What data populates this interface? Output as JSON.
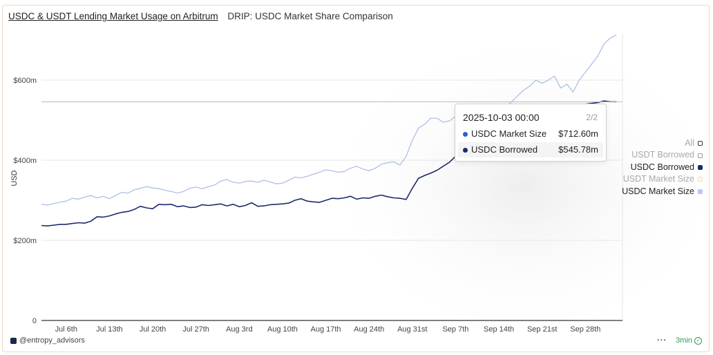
{
  "header": {
    "dashboard_title": "USDC & USDT Lending Market Usage on Arbitrum",
    "chart_title": "DRIP: USDC Market Share Comparison"
  },
  "tooltip": {
    "date": "2025-10-03 00:00",
    "page": "2/2",
    "rows": [
      {
        "label": "USDC Market Size",
        "value": "$712.60m",
        "color": "#2f5fd0"
      },
      {
        "label": "USDC Borrowed",
        "value": "$545.78m",
        "color": "#1b2a6b"
      }
    ]
  },
  "legend": {
    "items": [
      {
        "label": "All",
        "color": "#ffffff",
        "border": "#333333",
        "dim": true
      },
      {
        "label": "USDT Borrowed",
        "color": "#ffffff",
        "border": "#999999",
        "dim": true
      },
      {
        "label": "USDC Borrowed",
        "color": "#1b2a6b",
        "border": "#1b2a6b",
        "dim": false
      },
      {
        "label": "USDT Market Size",
        "color": "#fdfbe6",
        "border": "#e8e3b8",
        "dim": true
      },
      {
        "label": "USDC Market Size",
        "color": "#b9c8ee",
        "border": "#b9c8ee",
        "dim": false
      }
    ]
  },
  "footer": {
    "author": "@entropy_advisors",
    "more": "···",
    "freshness": "3min"
  },
  "chart_data": {
    "type": "line",
    "ylabel": "USD",
    "xlabel": "",
    "ylim": [
      0,
      800
    ],
    "yticks": [
      {
        "value": 0,
        "label": "0"
      },
      {
        "value": 200,
        "label": "$200m"
      },
      {
        "value": 400,
        "label": "$400m"
      },
      {
        "value": 600,
        "label": "$600m"
      }
    ],
    "x_tick_labels": [
      "Jul 6th",
      "Jul 13th",
      "Jul 20th",
      "Jul 27th",
      "Aug 3rd",
      "Aug 10th",
      "Aug 17th",
      "Aug 24th",
      "Aug 31st",
      "Sep 7th",
      "Sep 14th",
      "Sep 21st",
      "Sep 28th"
    ],
    "x_tick_days": [
      4,
      11,
      18,
      25,
      32,
      39,
      46,
      53,
      60,
      67,
      74,
      81,
      88
    ],
    "x_range_days": [
      0,
      94
    ],
    "grid": true,
    "legend_position": "right",
    "hover_day": 93,
    "hover_value": 545.78,
    "series": [
      {
        "name": "USDC Market Size",
        "color": "#aebfe6",
        "values": [
          290,
          288,
          292,
          295,
          298,
          305,
          303,
          308,
          312,
          306,
          310,
          304,
          312,
          320,
          318,
          326,
          330,
          334,
          331,
          329,
          325,
          322,
          318,
          322,
          330,
          333,
          329,
          334,
          338,
          348,
          352,
          345,
          343,
          347,
          348,
          345,
          350,
          346,
          341,
          343,
          350,
          358,
          356,
          360,
          365,
          370,
          376,
          374,
          370,
          372,
          380,
          385,
          378,
          374,
          380,
          390,
          394,
          396,
          388,
          410,
          450,
          480,
          490,
          505,
          505,
          495,
          498,
          510,
          518,
          515,
          520,
          523,
          525,
          528,
          530,
          532,
          545,
          560,
          575,
          585,
          600,
          592,
          600,
          610,
          580,
          590,
          570,
          600,
          620,
          640,
          660,
          690,
          705,
          712.6
        ]
      },
      {
        "name": "USDC Borrowed",
        "color": "#1b2a6b",
        "values": [
          237,
          236,
          238,
          240,
          240,
          242,
          244,
          243,
          248,
          259,
          258,
          261,
          266,
          270,
          272,
          277,
          285,
          281,
          279,
          290,
          289,
          290,
          284,
          286,
          282,
          283,
          289,
          287,
          289,
          291,
          286,
          290,
          284,
          287,
          294,
          285,
          286,
          289,
          290,
          291,
          293,
          300,
          304,
          298,
          296,
          295,
          300,
          305,
          304,
          306,
          310,
          303,
          306,
          305,
          310,
          313,
          309,
          306,
          305,
          302,
          330,
          355,
          362,
          368,
          375,
          385,
          395,
          410,
          425,
          440,
          460,
          470,
          478,
          485,
          492,
          498,
          505,
          510,
          515,
          520,
          525,
          528,
          530,
          532,
          535,
          536,
          537,
          538,
          540,
          542,
          544,
          548,
          546,
          545.78
        ]
      }
    ]
  }
}
